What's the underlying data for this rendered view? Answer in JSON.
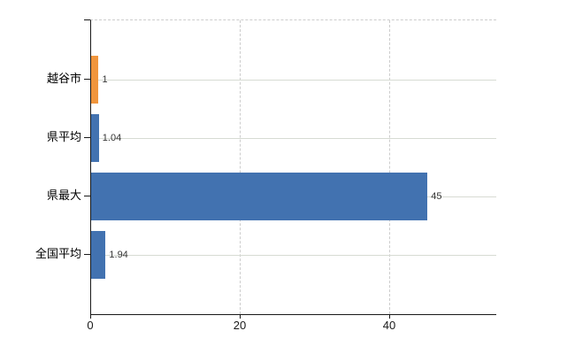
{
  "chart_data": {
    "type": "bar",
    "orientation": "horizontal",
    "title": "",
    "xlabel": "",
    "ylabel": "",
    "categories": [
      "越谷市",
      "県平均",
      "県最大",
      "全国平均"
    ],
    "values": [
      1,
      1.04,
      45,
      1.94
    ],
    "value_labels": [
      "1",
      "1.04",
      "45",
      "1.94"
    ],
    "bar_colors": [
      "#F0953C",
      "#4272B0",
      "#4272B0",
      "#4272B0"
    ],
    "x_ticks": [
      "0",
      "20",
      "40"
    ],
    "x_tick_values": [
      0,
      20,
      40
    ],
    "xlim": [
      0,
      54.2
    ],
    "grid": "on",
    "legend": "none"
  },
  "colors": {
    "highlight_bar": "#F0953C",
    "default_bar": "#4272B0",
    "grid_horizontal": "#D7DBD3",
    "grid_vertical": "#CCCCCC",
    "axis": "#1A1A1A",
    "value_label": "#333333",
    "category_label": "#000000",
    "background": "#FFFFFF"
  }
}
